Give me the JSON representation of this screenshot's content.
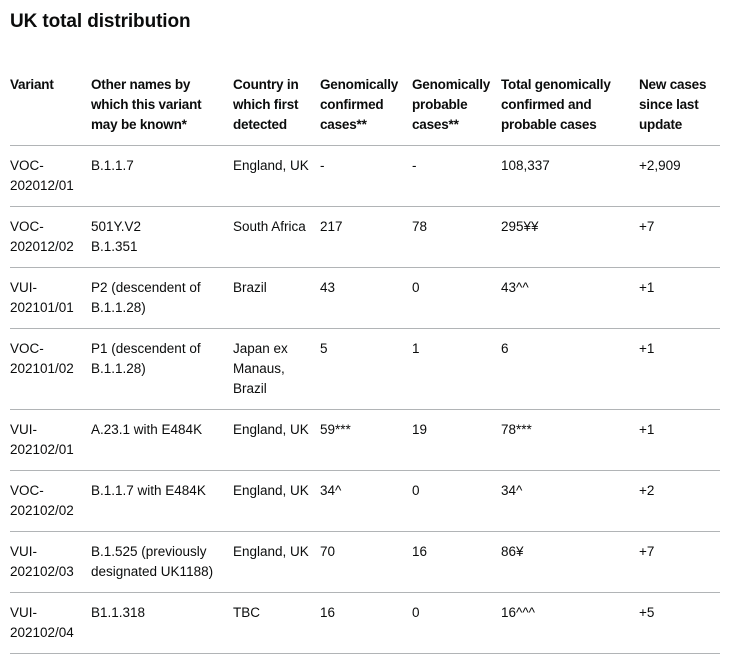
{
  "page": {
    "title": "UK total distribution"
  },
  "colors": {
    "text": "#0b0c0c",
    "border": "#b1b4b6",
    "background": "#ffffff"
  },
  "table": {
    "columns": [
      "Variant",
      "Other names by which this variant may be known*",
      "Country in which first detected",
      "Genomically confirmed cases**",
      "Genomically probable cases**",
      "Total genomically confirmed and probable cases",
      "New cases since last update"
    ],
    "column_keys": [
      "variant",
      "other_names",
      "country",
      "confirmed",
      "probable",
      "total",
      "new_cases"
    ],
    "rows": [
      {
        "variant": "VOC-202012/01",
        "other_names": "B.1.1.7",
        "country": "England, UK",
        "confirmed": "-",
        "probable": "-",
        "total": "108,337",
        "new_cases": "+2,909"
      },
      {
        "variant": "VOC-202012/02",
        "other_names": "501Y.V2\nB.1.351",
        "country": "South Africa",
        "confirmed": "217",
        "probable": "78",
        "total": "295¥¥",
        "new_cases": "+7"
      },
      {
        "variant": "VUI-202101/01",
        "other_names": "P2 (descendent of B.1.1.28)",
        "country": "Brazil",
        "confirmed": "43",
        "probable": "0",
        "total": "43^^",
        "new_cases": "+1"
      },
      {
        "variant": "VOC-202101/02",
        "other_names": "P1 (descendent of B.1.1.28)",
        "country": "Japan ex Manaus, Brazil",
        "confirmed": "5",
        "probable": "1",
        "total": "6",
        "new_cases": "+1"
      },
      {
        "variant": "VUI-202102/01",
        "other_names": "A.23.1 with E484K",
        "country": "England, UK",
        "confirmed": "59***",
        "probable": "19",
        "total": "78***",
        "new_cases": "+1"
      },
      {
        "variant": "VOC-202102/02",
        "other_names": "B.1.1.7 with E484K",
        "country": "England, UK",
        "confirmed": "34^",
        "probable": "0",
        "total": "34^",
        "new_cases": "+2"
      },
      {
        "variant": "VUI-202102/03",
        "other_names": "B.1.525 (previously designated UK1188)",
        "country": "England, UK",
        "confirmed": "70",
        "probable": "16",
        "total": "86¥",
        "new_cases": "+7"
      },
      {
        "variant": "VUI-202102/04",
        "other_names": "B1.1.318",
        "country": "TBC",
        "confirmed": "16",
        "probable": "0",
        "total": "16^^^",
        "new_cases": "+5"
      }
    ]
  }
}
